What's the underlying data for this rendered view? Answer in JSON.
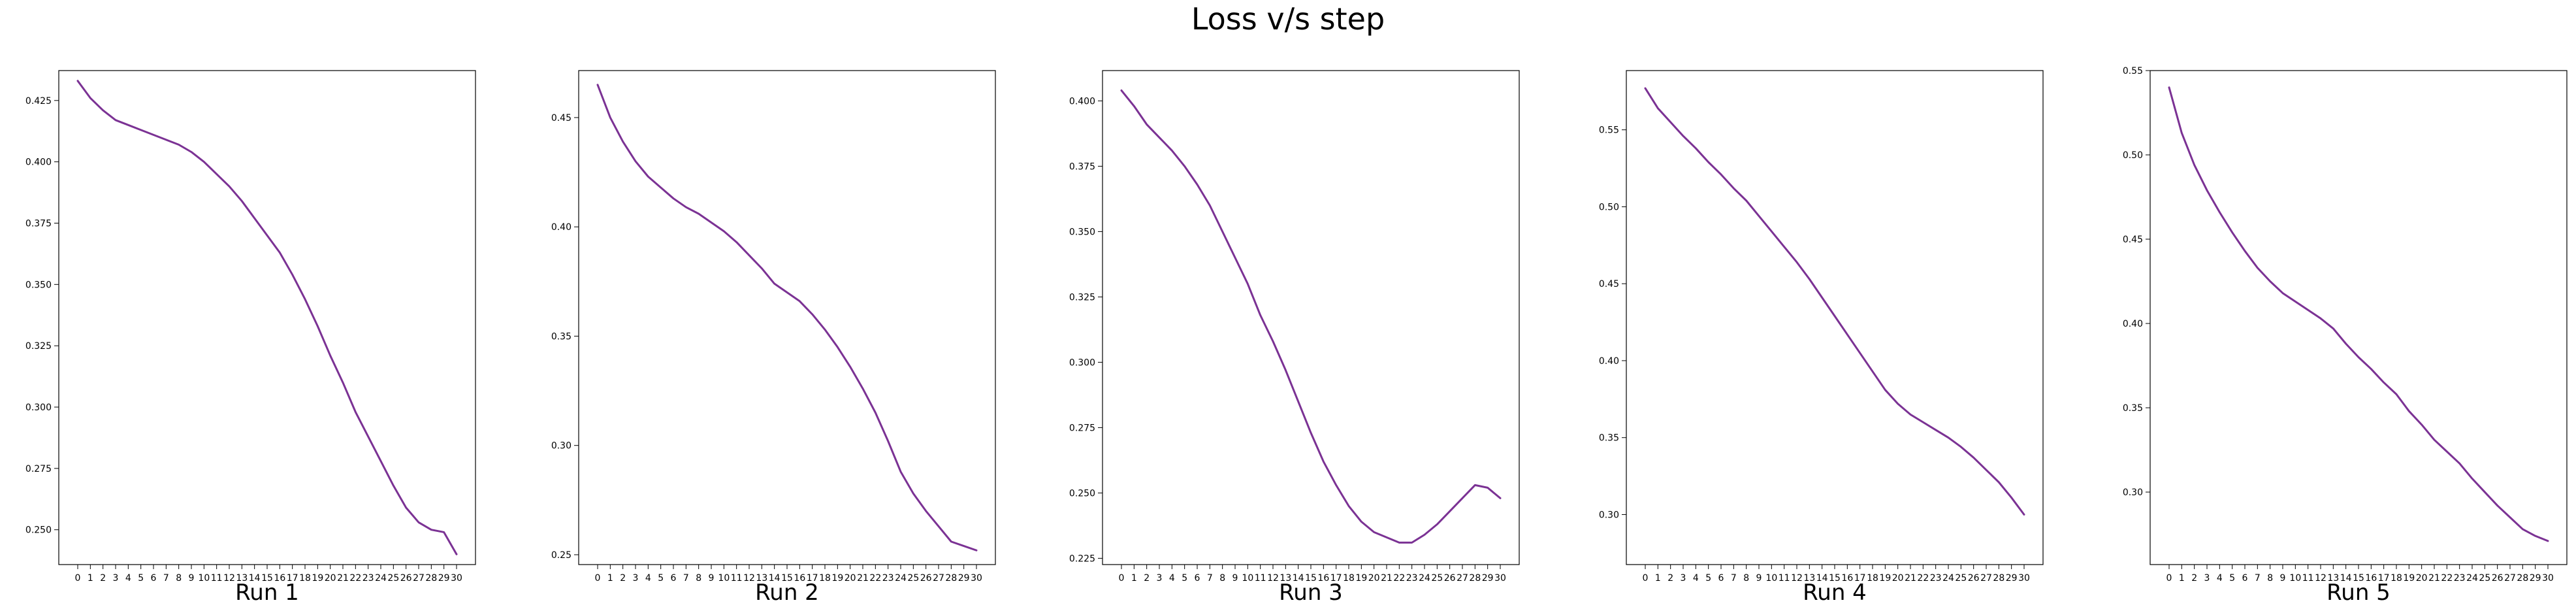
{
  "figure": {
    "title": "Loss v/s step",
    "line_color": "#7b3294"
  },
  "chart_data": [
    {
      "type": "line",
      "title": "Run 1",
      "xlabel": "",
      "ylabel": "",
      "x": [
        0,
        1,
        2,
        3,
        4,
        5,
        6,
        7,
        8,
        9,
        10,
        11,
        12,
        13,
        14,
        15,
        16,
        17,
        18,
        19,
        20,
        21,
        22,
        23,
        24,
        25,
        26,
        27,
        28,
        29,
        30
      ],
      "y": [
        0.433,
        0.426,
        0.421,
        0.417,
        0.415,
        0.413,
        0.411,
        0.409,
        0.407,
        0.404,
        0.4,
        0.395,
        0.39,
        0.384,
        0.377,
        0.37,
        0.363,
        0.354,
        0.344,
        0.333,
        0.321,
        0.31,
        0.298,
        0.288,
        0.278,
        0.268,
        0.259,
        0.253,
        0.25,
        0.249,
        0.24
      ],
      "xlim": [
        -1.5,
        31.5
      ],
      "ylim": [
        0.2358,
        0.4372
      ],
      "yticks": [
        0.25,
        0.275,
        0.3,
        0.325,
        0.35,
        0.375,
        0.4,
        0.425
      ],
      "ytick_labels": [
        "0.250",
        "0.275",
        "0.300",
        "0.325",
        "0.350",
        "0.375",
        "0.400",
        "0.425"
      ],
      "xticks": [
        0,
        1,
        2,
        3,
        4,
        5,
        6,
        7,
        8,
        9,
        10,
        11,
        12,
        13,
        14,
        15,
        16,
        17,
        18,
        19,
        20,
        21,
        22,
        23,
        24,
        25,
        26,
        27,
        28,
        29,
        30
      ],
      "xtick_labels": [
        "0",
        "1",
        "2",
        "3",
        "4",
        "5",
        "6",
        "7",
        "8",
        "9",
        "10",
        "11",
        "12",
        "13",
        "14",
        "15",
        "16",
        "17",
        "18",
        "19",
        "20",
        "21",
        "22",
        "23",
        "24",
        "25",
        "26",
        "27",
        "28",
        "29",
        "30"
      ],
      "grid": false,
      "legend": "none"
    },
    {
      "type": "line",
      "title": "Run 2",
      "xlabel": "",
      "ylabel": "",
      "x": [
        0,
        1,
        2,
        3,
        4,
        5,
        6,
        7,
        8,
        9,
        10,
        11,
        12,
        13,
        14,
        15,
        16,
        17,
        18,
        19,
        20,
        21,
        22,
        23,
        24,
        25,
        26,
        27,
        28,
        29,
        30
      ],
      "y": [
        0.465,
        0.45,
        0.439,
        0.43,
        0.423,
        0.418,
        0.413,
        0.409,
        0.406,
        0.402,
        0.398,
        0.393,
        0.387,
        0.381,
        0.374,
        0.37,
        0.366,
        0.36,
        0.353,
        0.345,
        0.336,
        0.326,
        0.315,
        0.302,
        0.288,
        0.278,
        0.27,
        0.263,
        0.256,
        0.254,
        0.252
      ],
      "xlim": [
        -1.5,
        31.5
      ],
      "ylim": [
        0.2455,
        0.4715
      ],
      "yticks": [
        0.25,
        0.3,
        0.35,
        0.4,
        0.45
      ],
      "ytick_labels": [
        "0.25",
        "0.30",
        "0.35",
        "0.40",
        "0.45"
      ],
      "xticks": [
        0,
        1,
        2,
        3,
        4,
        5,
        6,
        7,
        8,
        9,
        10,
        11,
        12,
        13,
        14,
        15,
        16,
        17,
        18,
        19,
        20,
        21,
        22,
        23,
        24,
        25,
        26,
        27,
        28,
        29,
        30
      ],
      "xtick_labels": [
        "0",
        "1",
        "2",
        "3",
        "4",
        "5",
        "6",
        "7",
        "8",
        "9",
        "10",
        "11",
        "12",
        "13",
        "14",
        "15",
        "16",
        "17",
        "18",
        "19",
        "20",
        "21",
        "22",
        "23",
        "24",
        "25",
        "26",
        "27",
        "28",
        "29",
        "30"
      ],
      "grid": false,
      "legend": "none"
    },
    {
      "type": "line",
      "title": "Run 3",
      "xlabel": "",
      "ylabel": "",
      "x": [
        0,
        1,
        2,
        3,
        4,
        5,
        6,
        7,
        8,
        9,
        10,
        11,
        12,
        13,
        14,
        15,
        16,
        17,
        18,
        19,
        20,
        21,
        22,
        23,
        24,
        25,
        26,
        27,
        28,
        29,
        30
      ],
      "y": [
        0.404,
        0.398,
        0.391,
        0.386,
        0.381,
        0.375,
        0.368,
        0.36,
        0.35,
        0.34,
        0.33,
        0.318,
        0.308,
        0.297,
        0.285,
        0.273,
        0.262,
        0.253,
        0.245,
        0.239,
        0.235,
        0.233,
        0.231,
        0.231,
        0.234,
        0.238,
        0.243,
        0.248,
        0.253,
        0.252,
        0.248
      ],
      "xlim": [
        -1.5,
        31.5
      ],
      "ylim": [
        0.2226,
        0.4116
      ],
      "yticks": [
        0.225,
        0.25,
        0.275,
        0.3,
        0.325,
        0.35,
        0.375,
        0.4
      ],
      "ytick_labels": [
        "0.225",
        "0.250",
        "0.275",
        "0.300",
        "0.325",
        "0.350",
        "0.375",
        "0.400"
      ],
      "xticks": [
        0,
        1,
        2,
        3,
        4,
        5,
        6,
        7,
        8,
        9,
        10,
        11,
        12,
        13,
        14,
        15,
        16,
        17,
        18,
        19,
        20,
        21,
        22,
        23,
        24,
        25,
        26,
        27,
        28,
        29,
        30
      ],
      "xtick_labels": [
        "0",
        "1",
        "2",
        "3",
        "4",
        "5",
        "6",
        "7",
        "8",
        "9",
        "10",
        "11",
        "12",
        "13",
        "14",
        "15",
        "16",
        "17",
        "18",
        "19",
        "20",
        "21",
        "22",
        "23",
        "24",
        "25",
        "26",
        "27",
        "28",
        "29",
        "30"
      ],
      "grid": false,
      "legend": "none"
    },
    {
      "type": "line",
      "title": "Run 4",
      "xlabel": "",
      "ylabel": "",
      "x": [
        0,
        1,
        2,
        3,
        4,
        5,
        6,
        7,
        8,
        9,
        10,
        11,
        12,
        13,
        14,
        15,
        16,
        17,
        18,
        19,
        20,
        21,
        22,
        23,
        24,
        25,
        26,
        27,
        28,
        29,
        30
      ],
      "y": [
        0.577,
        0.564,
        0.555,
        0.546,
        0.538,
        0.529,
        0.521,
        0.512,
        0.504,
        0.494,
        0.484,
        0.474,
        0.464,
        0.453,
        0.441,
        0.429,
        0.417,
        0.405,
        0.393,
        0.381,
        0.372,
        0.365,
        0.36,
        0.355,
        0.35,
        0.344,
        0.337,
        0.329,
        0.321,
        0.311,
        0.3
      ],
      "xlim": [
        -1.5,
        31.5
      ],
      "ylim": [
        0.2675,
        0.5885
      ],
      "yticks": [
        0.3,
        0.35,
        0.4,
        0.45,
        0.5,
        0.55
      ],
      "ytick_labels": [
        "0.30",
        "0.35",
        "0.40",
        "0.45",
        "0.50",
        "0.55"
      ],
      "xticks": [
        0,
        1,
        2,
        3,
        4,
        5,
        6,
        7,
        8,
        9,
        10,
        11,
        12,
        13,
        14,
        15,
        16,
        17,
        18,
        19,
        20,
        21,
        22,
        23,
        24,
        25,
        26,
        27,
        28,
        29,
        30
      ],
      "xtick_labels": [
        "0",
        "1",
        "2",
        "3",
        "4",
        "5",
        "6",
        "7",
        "8",
        "9",
        "10",
        "11",
        "12",
        "13",
        "14",
        "15",
        "16",
        "17",
        "18",
        "19",
        "20",
        "21",
        "22",
        "23",
        "24",
        "25",
        "26",
        "27",
        "28",
        "29",
        "30"
      ],
      "grid": false,
      "legend": "none"
    },
    {
      "type": "line",
      "title": "Run 5",
      "xlabel": "",
      "ylabel": "",
      "x": [
        0,
        1,
        2,
        3,
        4,
        5,
        6,
        7,
        8,
        9,
        10,
        11,
        12,
        13,
        14,
        15,
        16,
        17,
        18,
        19,
        20,
        21,
        22,
        23,
        24,
        25,
        26,
        27,
        28,
        29,
        30
      ],
      "y": [
        0.54,
        0.513,
        0.494,
        0.479,
        0.466,
        0.454,
        0.443,
        0.433,
        0.425,
        0.418,
        0.413,
        0.408,
        0.403,
        0.397,
        0.388,
        0.38,
        0.373,
        0.365,
        0.358,
        0.348,
        0.34,
        0.331,
        0.324,
        0.317,
        0.308,
        0.3,
        0.292,
        0.285,
        0.278,
        0.274,
        0.271
      ],
      "xlim": [
        -1.5,
        31.5
      ],
      "ylim": [
        0.257,
        0.55
      ],
      "yticks": [
        0.3,
        0.35,
        0.4,
        0.45,
        0.5,
        0.55
      ],
      "ytick_labels": [
        "0.30",
        "0.35",
        "0.40",
        "0.45",
        "0.50",
        "0.55"
      ],
      "xticks": [
        0,
        1,
        2,
        3,
        4,
        5,
        6,
        7,
        8,
        9,
        10,
        11,
        12,
        13,
        14,
        15,
        16,
        17,
        18,
        19,
        20,
        21,
        22,
        23,
        24,
        25,
        26,
        27,
        28,
        29,
        30
      ],
      "xtick_labels": [
        "0",
        "1",
        "2",
        "3",
        "4",
        "5",
        "6",
        "7",
        "8",
        "9",
        "10",
        "11",
        "12",
        "13",
        "14",
        "15",
        "16",
        "17",
        "18",
        "19",
        "20",
        "21",
        "22",
        "23",
        "24",
        "25",
        "26",
        "27",
        "28",
        "29",
        "30"
      ],
      "grid": false,
      "legend": "none"
    }
  ]
}
